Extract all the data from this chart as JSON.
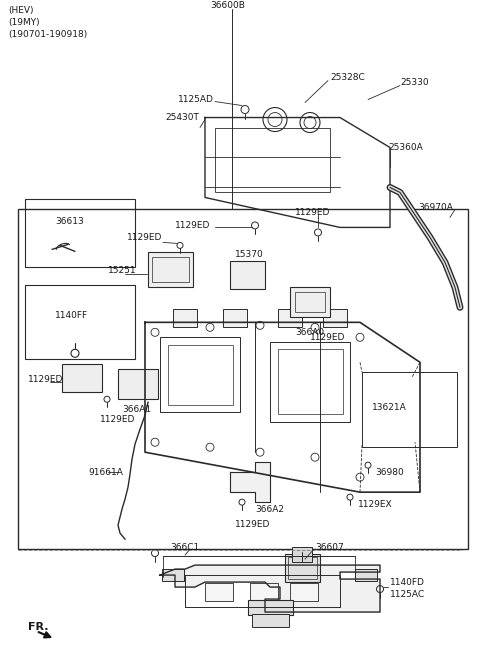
{
  "bg": "#ffffff",
  "lc": "#2a2a2a",
  "tc": "#1a1a1a",
  "fs": 6.5,
  "header": [
    "(HEV)",
    "(19MY)",
    "(190701-190918)"
  ]
}
